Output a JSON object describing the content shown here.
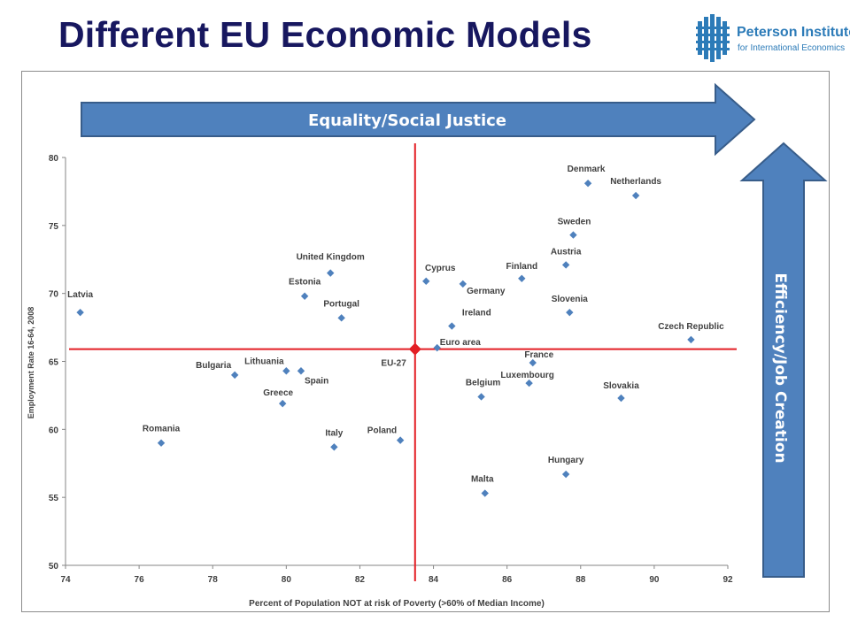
{
  "title": "Different EU Economic Models",
  "logo": {
    "name": "Peterson Institute",
    "subtitle": "for International Economics",
    "color": "#2c7bb8"
  },
  "arrows": {
    "horizontal_label": "Equality/Social Justice",
    "vertical_label": "Efficiency/Job Creation",
    "fill": "#4f81bd",
    "stroke": "#385d8a"
  },
  "chart_data": {
    "type": "scatter",
    "xlabel": "Percent of Population  NOT at risk of Poverty (>60% of Median Income)",
    "ylabel": "Employment Rate 16-64, 2008",
    "xlim": [
      74,
      92
    ],
    "ylim": [
      50,
      80
    ],
    "xticks": [
      74,
      76,
      78,
      80,
      82,
      84,
      86,
      88,
      90,
      92
    ],
    "yticks": [
      50,
      55,
      60,
      65,
      70,
      75,
      80
    ],
    "grid": false,
    "marker_color": "#4f81bd",
    "reference": {
      "label": "EU-27",
      "x": 83.5,
      "y": 65.9,
      "color": "#e31e24"
    },
    "points": [
      {
        "name": "Latvia",
        "x": 74.4,
        "y": 68.6
      },
      {
        "name": "Romania",
        "x": 76.6,
        "y": 59.0
      },
      {
        "name": "Bulgaria",
        "x": 78.6,
        "y": 64.0
      },
      {
        "name": "Lithuania",
        "x": 80.0,
        "y": 64.3
      },
      {
        "name": "Spain",
        "x": 80.4,
        "y": 64.3
      },
      {
        "name": "Greece",
        "x": 79.9,
        "y": 61.9
      },
      {
        "name": "United Kingdom",
        "x": 81.2,
        "y": 71.5
      },
      {
        "name": "Estonia",
        "x": 80.5,
        "y": 69.8
      },
      {
        "name": "Portugal",
        "x": 81.5,
        "y": 68.2
      },
      {
        "name": "Italy",
        "x": 81.3,
        "y": 58.7
      },
      {
        "name": "Poland",
        "x": 83.1,
        "y": 59.2
      },
      {
        "name": "Cyprus",
        "x": 83.8,
        "y": 70.9
      },
      {
        "name": "Germany",
        "x": 84.8,
        "y": 70.7
      },
      {
        "name": "Ireland",
        "x": 84.5,
        "y": 67.6
      },
      {
        "name": "Euro area",
        "x": 84.1,
        "y": 66.0
      },
      {
        "name": "Finland",
        "x": 86.4,
        "y": 71.1
      },
      {
        "name": "France",
        "x": 86.7,
        "y": 64.9
      },
      {
        "name": "Luxembourg",
        "x": 86.6,
        "y": 63.4
      },
      {
        "name": "Belgium",
        "x": 85.3,
        "y": 62.4
      },
      {
        "name": "Malta",
        "x": 85.4,
        "y": 55.3
      },
      {
        "name": "Denmark",
        "x": 88.2,
        "y": 78.1
      },
      {
        "name": "Netherlands",
        "x": 89.5,
        "y": 77.2
      },
      {
        "name": "Sweden",
        "x": 87.8,
        "y": 74.3
      },
      {
        "name": "Austria",
        "x": 87.6,
        "y": 72.1
      },
      {
        "name": "Slovenia",
        "x": 87.7,
        "y": 68.6
      },
      {
        "name": "Czech Republic",
        "x": 91.0,
        "y": 66.6
      },
      {
        "name": "Slovakia",
        "x": 89.1,
        "y": 62.3
      },
      {
        "name": "Hungary",
        "x": 87.6,
        "y": 56.7
      }
    ]
  }
}
